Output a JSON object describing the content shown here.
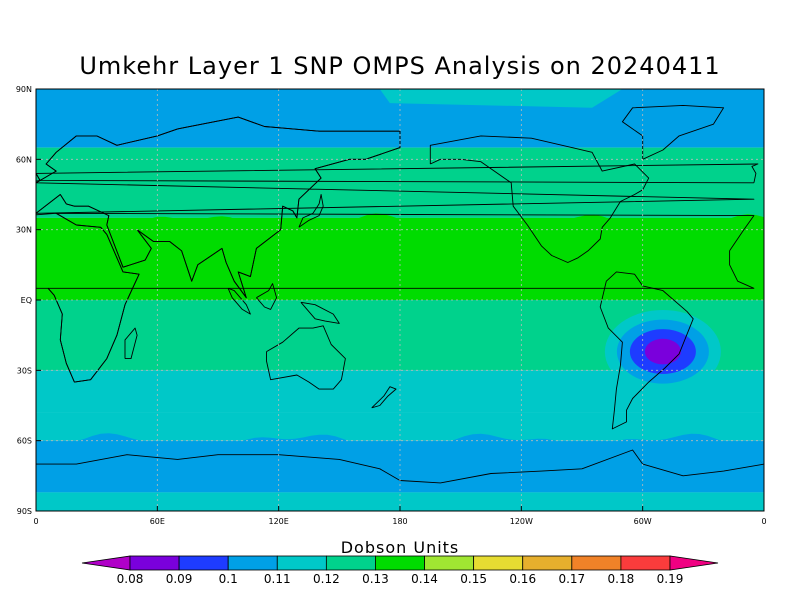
{
  "title": "Umkehr Layer 1 SNP OMPS Analysis on 20240411",
  "map": {
    "projection": "cylindrical-equidistant",
    "lon_range": [
      0,
      360
    ],
    "lat_range": [
      -90,
      90
    ],
    "lat_ticks": [
      {
        "lat": 90,
        "label": "90N"
      },
      {
        "lat": 60,
        "label": "60N"
      },
      {
        "lat": 30,
        "label": "30N"
      },
      {
        "lat": 0,
        "label": "EQ"
      },
      {
        "lat": -30,
        "label": "30S"
      },
      {
        "lat": -60,
        "label": "60S"
      },
      {
        "lat": -90,
        "label": "90S"
      }
    ],
    "lon_ticks": [
      {
        "lon": 0,
        "label": "0"
      },
      {
        "lon": 60,
        "label": "60E"
      },
      {
        "lon": 120,
        "label": "120E"
      },
      {
        "lon": 180,
        "label": "180"
      },
      {
        "lon": 240,
        "label": "120W"
      },
      {
        "lon": 300,
        "label": "60W"
      },
      {
        "lon": 360,
        "label": "0"
      }
    ],
    "grid": "dotted at 30-degree latitude and 60-degree longitude intervals",
    "field_bands": [
      {
        "lat_from": 90,
        "lat_to": 65,
        "level": 0.1
      },
      {
        "lat_from": 65,
        "lat_to": 35,
        "level": 0.12
      },
      {
        "lat_from": 35,
        "lat_to": 0,
        "level": 0.13
      },
      {
        "lat_from": 0,
        "lat_to": -30,
        "level": 0.12
      },
      {
        "lat_from": -30,
        "lat_to": -48,
        "level": 0.11
      },
      {
        "lat_from": -48,
        "lat_to": -60,
        "level": 0.11
      },
      {
        "lat_from": -60,
        "lat_to": -82,
        "level": 0.1
      },
      {
        "lat_from": -82,
        "lat_to": -90,
        "level": 0.11
      }
    ],
    "anomaly": {
      "region": "South America, centred near 50W 20S",
      "center_lon": 310,
      "center_lat": -22,
      "levels": [
        0.11,
        0.1,
        0.09,
        0.08
      ]
    }
  },
  "colorbar": {
    "label": "Dobson Units",
    "levels": [
      "0.08",
      "0.09",
      "0.1",
      "0.11",
      "0.12",
      "0.13",
      "0.14",
      "0.15",
      "0.16",
      "0.17",
      "0.18",
      "0.19"
    ],
    "colors": [
      "#b000c8",
      "#7a00dc",
      "#1e3cff",
      "#00a0e6",
      "#00c8c8",
      "#00d28c",
      "#00dc00",
      "#a0e632",
      "#e6dc32",
      "#e6af2d",
      "#f08228",
      "#fa3c3c",
      "#f00082"
    ]
  }
}
